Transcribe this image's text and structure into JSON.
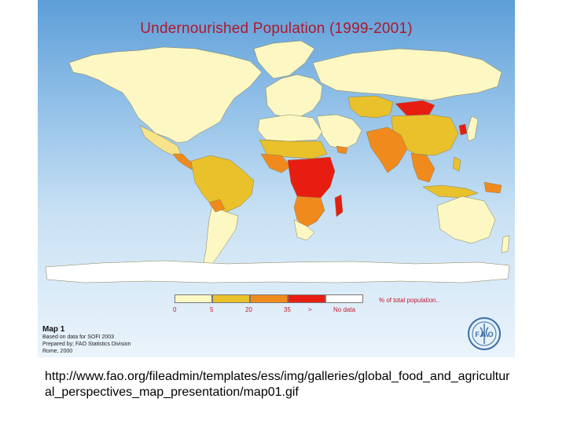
{
  "map": {
    "title": "Undernourished Population (1999-2001)",
    "legend": {
      "caption": "% of total population..",
      "ticks": [
        "0",
        "5",
        "20",
        "35",
        ">",
        "No data"
      ],
      "classes": [
        {
          "color": "#fdf8c3"
        },
        {
          "color": "#e9c12a"
        },
        {
          "color": "#f08a1c"
        },
        {
          "color": "#e71d12"
        },
        {
          "color": "#ffffff"
        }
      ]
    },
    "map_number": "Map 1",
    "credits": [
      "Based on data for SOFI 2003",
      "Prepared by; FAO Statistics Division",
      "Rome, 2000"
    ],
    "colors": {
      "title": "#b0172b",
      "land_base": "#fdf8c3",
      "antarctica": "#ffffff",
      "logo": "#3b6ea8"
    },
    "logo_icon": "fao-emblem-icon"
  },
  "caption": {
    "url": "http://www.fao.org/fileadmin/templates/ess/img/galleries/global_food_and_agricultural_perspectives_map_presentation/map01.gif"
  }
}
